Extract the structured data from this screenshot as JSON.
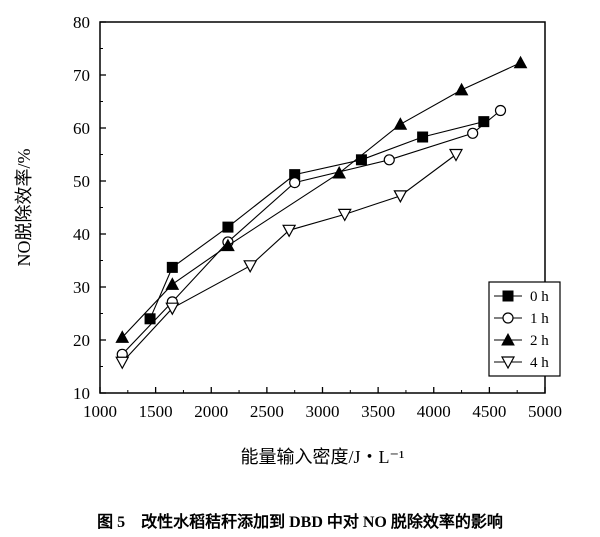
{
  "caption": "图 5    改性水稻秸秆添加到 DBD 中对 NO 脱除效率的影响",
  "chart_data": {
    "type": "line",
    "xlabel": "能量输入密度/J・L⁻¹",
    "ylabel": "NO脱除效率/%",
    "xlim": [
      1000,
      5000
    ],
    "ylim": [
      10,
      80
    ],
    "xticks": [
      1000,
      1500,
      2000,
      2500,
      3000,
      3500,
      4000,
      4500,
      5000
    ],
    "yticks": [
      10,
      20,
      30,
      40,
      50,
      60,
      70,
      80
    ],
    "legend_position": "lower-right",
    "grid": false,
    "series": [
      {
        "name": "0 h",
        "marker": "square-filled",
        "x": [
          1450,
          1650,
          2150,
          2750,
          3350,
          3900,
          4450
        ],
        "y": [
          24.0,
          33.7,
          41.3,
          51.2,
          54.0,
          58.3,
          61.2
        ]
      },
      {
        "name": "1 h",
        "marker": "circle-open",
        "x": [
          1200,
          1650,
          2150,
          2750,
          3600,
          4350,
          4600
        ],
        "y": [
          17.3,
          27.2,
          38.5,
          49.7,
          54.0,
          59.0,
          63.3
        ]
      },
      {
        "name": "2 h",
        "marker": "triangle-up-filled",
        "x": [
          1200,
          1650,
          2150,
          3150,
          3700,
          4250,
          4780
        ],
        "y": [
          20.5,
          30.5,
          37.8,
          51.5,
          60.7,
          67.2,
          72.3
        ]
      },
      {
        "name": "4 h",
        "marker": "triangle-down-open",
        "x": [
          1200,
          1650,
          2350,
          2700,
          3200,
          3700,
          4200
        ],
        "y": [
          15.8,
          26.0,
          34.0,
          40.7,
          43.7,
          47.2,
          55.0
        ]
      }
    ]
  }
}
